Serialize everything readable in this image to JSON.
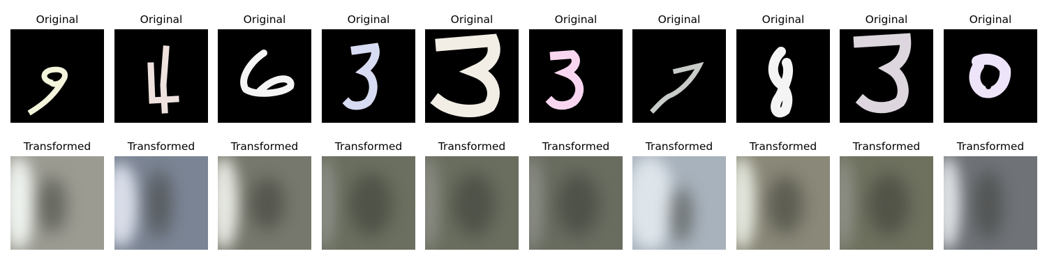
{
  "grid": {
    "columns": [
      {
        "original_title": "Original",
        "transformed_title": "Transformed",
        "digit_color": "#f4f4dc",
        "tone": "#9b9b92",
        "light_edge": "#eef2ee"
      },
      {
        "original_title": "Original",
        "transformed_title": "Transformed",
        "digit_color": "#efe2de",
        "tone": "#7b8494",
        "light_edge": "#d8dde8"
      },
      {
        "original_title": "Original",
        "transformed_title": "Transformed",
        "digit_color": "#f4f4f4",
        "tone": "#77786d",
        "light_edge": "#e6e8e2"
      },
      {
        "original_title": "Original",
        "transformed_title": "Transformed",
        "digit_color": "#d8dcf2",
        "tone": "#6a6f5f",
        "light_edge": "#8a8d86"
      },
      {
        "original_title": "Original",
        "transformed_title": "Transformed",
        "digit_color": "#f2eee6",
        "tone": "#6a6e5f",
        "light_edge": "#8a8c84"
      },
      {
        "original_title": "Original",
        "transformed_title": "Transformed",
        "digit_color": "#f8d6f0",
        "tone": "#696d60",
        "light_edge": "#8a8c86"
      },
      {
        "original_title": "Original",
        "transformed_title": "Transformed",
        "digit_color": "#c8ccc8",
        "tone": "#a8b2bc",
        "light_edge": "#dde4ea"
      },
      {
        "original_title": "Original",
        "transformed_title": "Transformed",
        "digit_color": "#f4f4f4",
        "tone": "#8a8878",
        "light_edge": "#e2e6dc"
      },
      {
        "original_title": "Original",
        "transformed_title": "Transformed",
        "digit_color": "#ddd6de",
        "tone": "#6f715f",
        "light_edge": "#8d8f86"
      },
      {
        "original_title": "Original",
        "transformed_title": "Transformed",
        "digit_color": "#eee4fa",
        "tone": "#6f7378",
        "light_edge": "#dfe3e6"
      }
    ]
  }
}
